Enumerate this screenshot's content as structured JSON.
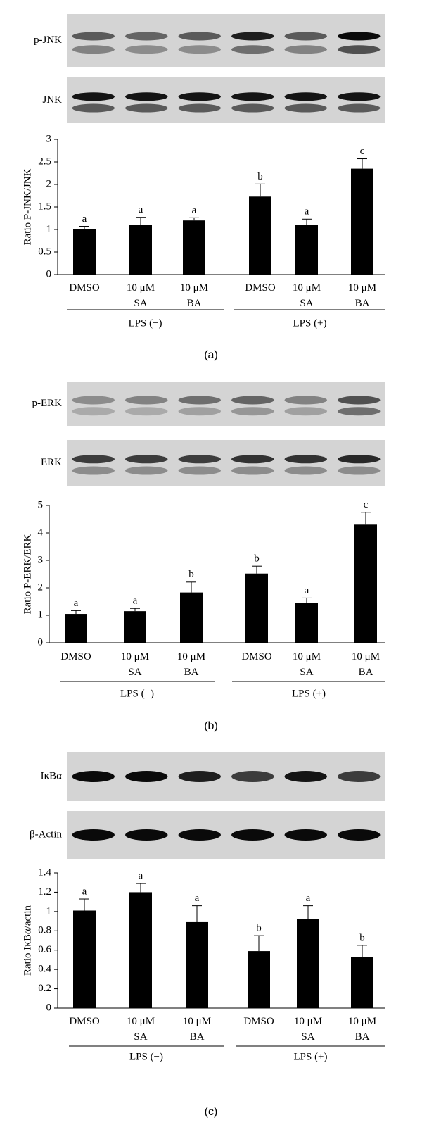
{
  "chart_data": [
    {
      "type": "bar",
      "panel_label": "(a)",
      "blot_labels": [
        "p-JNK",
        "JNK"
      ],
      "y_label": "Ratio P-JNK/JNK",
      "categories": [
        "DMSO",
        "10 μM SA",
        "10 μM BA",
        "DMSO",
        "10 μM SA",
        "10 μM BA"
      ],
      "groups": [
        "LPS (−)",
        "LPS (+)"
      ],
      "values": [
        1.0,
        1.1,
        1.2,
        1.73,
        1.1,
        2.35
      ],
      "errors": [
        0.07,
        0.17,
        0.06,
        0.28,
        0.13,
        0.22
      ],
      "annotations": [
        "a",
        "a",
        "a",
        "b",
        "a",
        "c"
      ],
      "color": "#000000",
      "ylim": [
        0,
        3
      ],
      "yticks": [
        0,
        0.5,
        1,
        1.5,
        2,
        2.5,
        3
      ]
    },
    {
      "type": "bar",
      "panel_label": "(b)",
      "blot_labels": [
        "p-ERK",
        "ERK"
      ],
      "y_label": "Ratio P-ERK/ERK",
      "categories": [
        "DMSO",
        "10 μM SA",
        "10 μM BA",
        "DMSO",
        "10 μM SA",
        "10 μM BA"
      ],
      "groups": [
        "LPS (−)",
        "LPS (+)"
      ],
      "values": [
        1.05,
        1.15,
        1.83,
        2.52,
        1.45,
        4.3
      ],
      "errors": [
        0.12,
        0.1,
        0.38,
        0.27,
        0.18,
        0.45
      ],
      "annotations": [
        "a",
        "a",
        "b",
        "b",
        "a",
        "c"
      ],
      "color": "#000000",
      "ylim": [
        0,
        5
      ],
      "yticks": [
        0,
        1,
        2,
        3,
        4,
        5
      ]
    },
    {
      "type": "bar",
      "panel_label": "(c)",
      "blot_labels": [
        "IκBα",
        "β-Actin"
      ],
      "y_label": "Ratio IκBα/actin",
      "categories": [
        "DMSO",
        "10 μM SA",
        "10 μM BA",
        "DMSO",
        "10 μM SA",
        "10 μM BA"
      ],
      "groups": [
        "LPS (−)",
        "LPS (+)"
      ],
      "values": [
        1.01,
        1.2,
        0.89,
        0.59,
        0.92,
        0.53
      ],
      "errors": [
        0.12,
        0.09,
        0.17,
        0.16,
        0.14,
        0.12
      ],
      "annotations": [
        "a",
        "a",
        "a",
        "b",
        "a",
        "b"
      ],
      "color": "#000000",
      "ylim": [
        0,
        1.4
      ],
      "yticks": [
        0,
        0.2,
        0.4,
        0.6,
        0.8,
        1,
        1.2,
        1.4
      ]
    }
  ]
}
